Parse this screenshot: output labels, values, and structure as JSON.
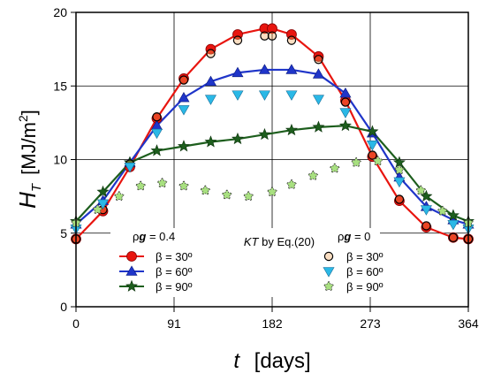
{
  "chart_data": {
    "type": "line",
    "xlabel": {
      "symbol": "t",
      "units": "[days]"
    },
    "ylabel": {
      "symbol": "H",
      "subscript": "T",
      "units": "[MJ/m",
      "units_sup": "2",
      "units_end": "]"
    },
    "xlim": [
      0,
      364
    ],
    "ylim": [
      0,
      20
    ],
    "xticks": [
      0,
      91,
      182,
      273,
      364
    ],
    "yticks": [
      0,
      5,
      10,
      15,
      20
    ],
    "grid": true,
    "annotation": {
      "prefix": "KT",
      "text": " by Eq.(20)"
    },
    "legend_groups": [
      {
        "rho": "ρ",
        "g": "g",
        "eq": " = 0.4",
        "entries": [
          "β = 30º",
          "β = 60º",
          "β = 90º"
        ]
      },
      {
        "rho": "ρ",
        "g": "g",
        "eq": " = 0",
        "entries": [
          "β = 30º",
          "β = 60º",
          "β = 90º"
        ]
      }
    ],
    "series": [
      {
        "group": "ρg = 0.4",
        "label": "β = 30º",
        "color": "#e8150f",
        "marker": "circle",
        "x": [
          0,
          25,
          50,
          75,
          100,
          125,
          150,
          175,
          182,
          200,
          225,
          250,
          275,
          300,
          325,
          350,
          364
        ],
        "y": [
          4.6,
          6.5,
          9.5,
          12.8,
          15.5,
          17.5,
          18.5,
          18.9,
          18.9,
          18.5,
          17.0,
          14.0,
          10.2,
          7.2,
          5.4,
          4.7,
          4.6
        ]
      },
      {
        "group": "ρg = 0.4",
        "label": "β = 60º",
        "color": "#1f35c9",
        "marker": "triangle-up",
        "x": [
          0,
          25,
          50,
          75,
          100,
          125,
          150,
          175,
          200,
          225,
          250,
          275,
          300,
          325,
          350,
          364
        ],
        "y": [
          5.6,
          7.2,
          9.8,
          12.3,
          14.2,
          15.3,
          15.9,
          16.1,
          16.1,
          15.8,
          14.5,
          11.8,
          8.8,
          6.8,
          5.9,
          5.6
        ]
      },
      {
        "group": "ρg = 0.4",
        "label": "β = 90º",
        "color": "#1d5e1d",
        "marker": "star",
        "x": [
          0,
          25,
          50,
          75,
          100,
          125,
          150,
          175,
          200,
          225,
          250,
          275,
          300,
          325,
          350,
          364
        ],
        "y": [
          5.8,
          7.8,
          9.8,
          10.6,
          10.9,
          11.2,
          11.4,
          11.7,
          12.0,
          12.2,
          12.3,
          11.9,
          9.8,
          7.5,
          6.2,
          5.8
        ]
      },
      {
        "group": "ρg = 0",
        "label": "β = 30º",
        "color": "#f0a050",
        "marker": "circle-open",
        "x": [
          0,
          25,
          50,
          75,
          100,
          125,
          150,
          175,
          182,
          200,
          225,
          250,
          275,
          300,
          325,
          350,
          364
        ],
        "y": [
          4.6,
          6.6,
          9.7,
          12.9,
          15.4,
          17.2,
          18.1,
          18.4,
          18.4,
          18.1,
          16.8,
          13.9,
          10.3,
          7.3,
          5.5,
          4.7,
          4.6
        ]
      },
      {
        "group": "ρg = 0",
        "label": "β = 60º",
        "color": "#2ab8e6",
        "marker": "triangle-down",
        "x": [
          0,
          25,
          50,
          75,
          100,
          125,
          150,
          175,
          200,
          225,
          250,
          275,
          300,
          325,
          350,
          364
        ],
        "y": [
          5.3,
          7.0,
          9.5,
          11.8,
          13.4,
          14.1,
          14.4,
          14.4,
          14.4,
          14.1,
          13.2,
          11.0,
          8.5,
          6.6,
          5.6,
          5.3
        ]
      },
      {
        "group": "ρg = 0",
        "label": "β = 90º",
        "color": "#a8e080",
        "marker": "star-open",
        "x": [
          0,
          20,
          40,
          60,
          80,
          100,
          120,
          140,
          160,
          182,
          200,
          220,
          240,
          260,
          280,
          300,
          320,
          340,
          364
        ],
        "y": [
          5.7,
          6.6,
          7.5,
          8.2,
          8.4,
          8.2,
          7.9,
          7.6,
          7.5,
          7.8,
          8.3,
          8.9,
          9.4,
          9.8,
          9.9,
          9.3,
          7.9,
          6.5,
          5.7
        ]
      }
    ]
  }
}
